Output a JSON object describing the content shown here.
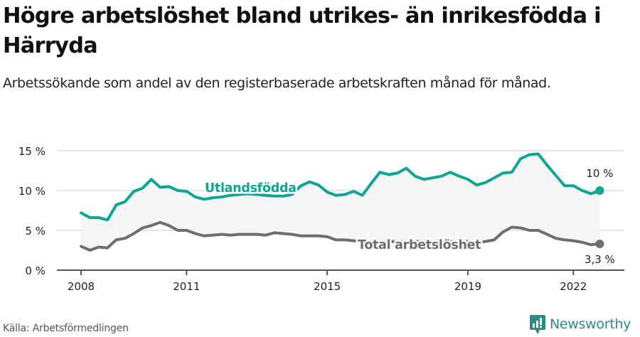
{
  "header": {
    "title": "Högre arbetslöshet bland utrikes- än inrikesfödda i Härryda",
    "subtitle": "Arbetssökande som andel av den registerbaserade arbetskraften månad för månad."
  },
  "footer": {
    "source": "Källa: Arbetsförmedlingen",
    "brand": "Newsworthy",
    "brand_icon": "bar-chart-speech-bubble-icon"
  },
  "colors": {
    "foreign_born": "#0ea594",
    "total": "#6e6d73",
    "band_fill": "#f6f6f7",
    "grid": "#e6e6e6",
    "axis": "#555555",
    "brand": "#2e8b84"
  },
  "chart_data": {
    "type": "line",
    "title": "Högre arbetslöshet bland utrikes- än inrikesfödda i Härryda",
    "subtitle": "Arbetssökande som andel av den registerbaserade arbetskraften månad för månad.",
    "xlabel": "",
    "ylabel": "",
    "ylim": [
      0,
      15
    ],
    "yticks": [
      0,
      5,
      10,
      15
    ],
    "ytick_labels": [
      "0 %",
      "5 %",
      "10 %",
      "15 %"
    ],
    "xticks": [
      2008,
      2011,
      2015,
      2019,
      2022
    ],
    "xtick_labels": [
      "2008",
      "2011",
      "2015",
      "2019",
      "2022"
    ],
    "xlim": [
      2007.3,
      2023.5
    ],
    "grid": true,
    "legend": "inline labels",
    "x": [
      2008.0,
      2008.25,
      2008.5,
      2008.75,
      2009.0,
      2009.25,
      2009.5,
      2009.75,
      2010.0,
      2010.25,
      2010.5,
      2010.75,
      2011.0,
      2011.25,
      2011.5,
      2011.75,
      2012.0,
      2012.25,
      2012.5,
      2012.75,
      2013.0,
      2013.25,
      2013.5,
      2013.75,
      2014.0,
      2014.25,
      2014.5,
      2014.75,
      2015.0,
      2015.25,
      2015.5,
      2015.75,
      2016.0,
      2016.25,
      2016.5,
      2016.75,
      2017.0,
      2017.25,
      2017.5,
      2017.75,
      2018.0,
      2018.25,
      2018.5,
      2018.75,
      2019.0,
      2019.25,
      2019.5,
      2019.75,
      2020.0,
      2020.25,
      2020.5,
      2020.75,
      2021.0,
      2021.25,
      2021.5,
      2021.75,
      2022.0,
      2022.25,
      2022.5,
      2022.75
    ],
    "series": [
      {
        "name": "Utlandsfödda",
        "values": [
          7.2,
          6.6,
          6.6,
          6.3,
          8.2,
          8.6,
          9.9,
          10.3,
          11.4,
          10.4,
          10.5,
          10.0,
          9.9,
          9.2,
          8.9,
          9.1,
          9.2,
          9.4,
          9.5,
          9.6,
          9.5,
          9.4,
          9.3,
          9.3,
          9.5,
          10.6,
          11.1,
          10.7,
          9.8,
          9.4,
          9.5,
          9.9,
          9.4,
          10.9,
          12.3,
          12.0,
          12.2,
          12.8,
          11.8,
          11.4,
          11.6,
          11.8,
          12.3,
          11.8,
          11.4,
          10.7,
          11.0,
          11.6,
          12.2,
          12.3,
          14.0,
          14.5,
          14.6,
          13.2,
          11.9,
          10.6,
          10.6,
          10.0,
          9.6,
          10.0
        ]
      },
      {
        "name": "Total arbetslöshet",
        "values": [
          3.0,
          2.5,
          2.9,
          2.8,
          3.8,
          4.0,
          4.6,
          5.3,
          5.6,
          6.0,
          5.6,
          5.0,
          5.0,
          4.6,
          4.3,
          4.4,
          4.5,
          4.4,
          4.5,
          4.5,
          4.5,
          4.4,
          4.7,
          4.6,
          4.5,
          4.3,
          4.3,
          4.3,
          4.2,
          3.8,
          3.8,
          3.7,
          3.6,
          3.6,
          3.6,
          3.6,
          3.6,
          3.6,
          3.6,
          3.6,
          3.6,
          3.6,
          3.6,
          3.6,
          3.6,
          3.5,
          3.6,
          3.8,
          4.8,
          5.4,
          5.3,
          5.0,
          5.0,
          4.5,
          4.0,
          3.8,
          3.7,
          3.5,
          3.2,
          3.3
        ]
      }
    ],
    "annotations": [
      {
        "text": "Utlandsfödda",
        "series": "Utlandsfödda",
        "position": "inline ~2013"
      },
      {
        "text": "Total arbetslöshet",
        "series": "Total arbetslöshet",
        "position": "inline ~2017"
      },
      {
        "text": "10 %",
        "series": "Utlandsfödda",
        "position": "end label"
      },
      {
        "text": "3,3 %",
        "series": "Total arbetslöshet",
        "position": "end label"
      }
    ],
    "end_labels": {
      "foreign_born": "10 %",
      "total": "3,3 %"
    }
  }
}
